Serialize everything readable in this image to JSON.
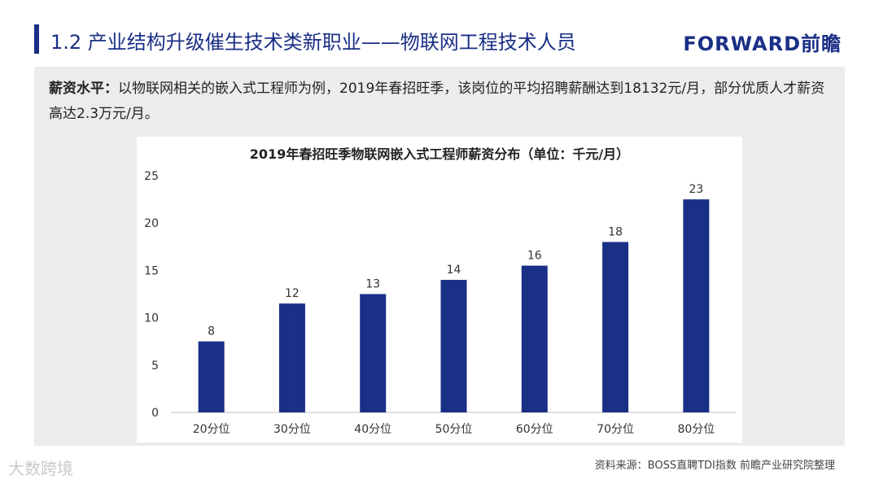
{
  "header": {
    "title": "1.2 产业结构升级催生技术类新职业——物联网工程技术人员",
    "logo": "FORWARD前瞻"
  },
  "description": {
    "lead": "薪资水平：",
    "text": "以物联网相关的嵌入式工程师为例，2019年春招旺季，该岗位的平均招聘薪酬达到18132元/月，部分优质人才薪资高达2.3万元/月。"
  },
  "chart_data": {
    "type": "bar",
    "title": "2019年春招旺季物联网嵌入式工程师薪资分布（单位：千元/月）",
    "categories": [
      "20分位",
      "30分位",
      "40分位",
      "50分位",
      "60分位",
      "70分位",
      "80分位"
    ],
    "values": [
      7.5,
      11.5,
      12.5,
      14,
      15.5,
      18,
      22.5
    ],
    "data_labels": [
      "8",
      "12",
      "13",
      "14",
      "16",
      "18",
      "23"
    ],
    "ylim": [
      0,
      25
    ],
    "yticks": [
      0,
      5,
      10,
      15,
      20,
      25
    ],
    "bar_color": "#1a2f86",
    "grid": false,
    "legend": "none"
  },
  "footer": {
    "source": "资料来源：BOSS直聘TDI指数 前瞻产业研究院整理",
    "watermark": "大数跨境"
  }
}
